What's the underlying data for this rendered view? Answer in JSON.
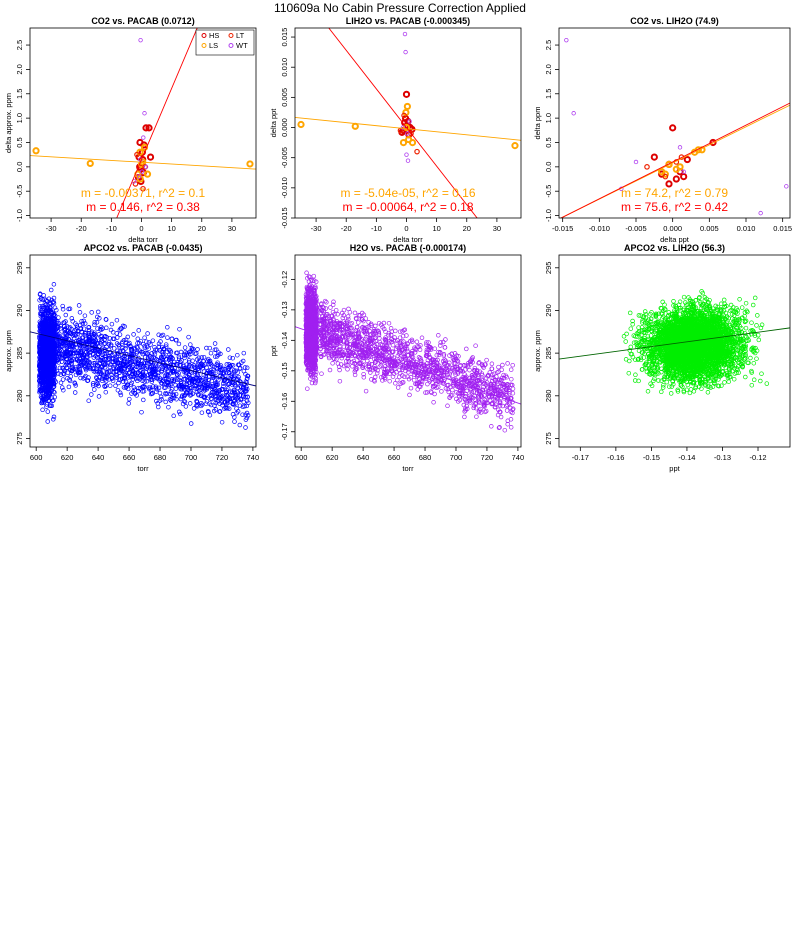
{
  "page": {
    "title": "110609a   No Cabin Pressure Correction Applied"
  },
  "colors": {
    "HS": "#dd0000",
    "LS": "#ffa500",
    "LT": "#ee2200",
    "WT": "#b040f0",
    "apco2_pacab": "#0000ff",
    "h2o_pacab": "#a020f0",
    "apco2_lih2o": "#00ee00",
    "fit_all": "#ff0000",
    "fit_ls": "#ffa500"
  },
  "legend": {
    "entries": [
      "HS",
      "LS",
      "LT",
      "WT"
    ]
  },
  "chart_data": [
    {
      "id": "p1",
      "type": "scatter",
      "title": "CO2 vs. PACAB (0.0712)",
      "xlabel": "delta torr",
      "ylabel": "delta approx. ppm",
      "xlim": [
        -37,
        38
      ],
      "ylim": [
        -1.05,
        2.85
      ],
      "xticks": [
        -30,
        -20,
        -10,
        0,
        10,
        20,
        30
      ],
      "yticks": [
        -1.0,
        -0.5,
        0.0,
        0.5,
        1.0,
        1.5,
        2.0,
        2.5
      ],
      "ytick_labels": [
        "-1.0",
        "-0.5",
        "0.0",
        "0.5",
        "1.0",
        "1.5",
        "2.0",
        "2.5"
      ],
      "legend_entries": [
        "HS",
        "LS",
        "LT",
        "WT"
      ],
      "fits": [
        {
          "name": "LS",
          "slope": -0.00371,
          "intercept": 0.095,
          "label": "m = -0.00371, r^2 = 0.1"
        },
        {
          "name": "all",
          "slope": 0.146,
          "intercept": 0.15,
          "label": "m = 0.146, r^2 = 0.38"
        }
      ],
      "series": [
        {
          "name": "HS",
          "points": [
            [
              1.5,
              0.8
            ],
            [
              2.5,
              0.8
            ],
            [
              0.8,
              0.45
            ],
            [
              -0.5,
              0.5
            ],
            [
              0.3,
              0.3
            ],
            [
              -0.8,
              0.2
            ],
            [
              0.2,
              0.05
            ],
            [
              -0.3,
              -0.05
            ],
            [
              0.6,
              -0.12
            ],
            [
              -1.0,
              -0.22
            ],
            [
              3.0,
              0.2
            ],
            [
              -0.2,
              -0.3
            ],
            [
              0.4,
              0.15
            ],
            [
              -0.6,
              0.0
            ]
          ]
        },
        {
          "name": "LS",
          "points": [
            [
              -35,
              0.33
            ],
            [
              -17,
              0.07
            ],
            [
              36,
              0.06
            ],
            [
              -0.5,
              0.3
            ],
            [
              0.4,
              0.1
            ],
            [
              -1.2,
              -0.15
            ],
            [
              2.0,
              -0.15
            ],
            [
              0.0,
              0.05
            ],
            [
              1.0,
              0.4
            ],
            [
              -0.4,
              -0.25
            ]
          ]
        },
        {
          "name": "LT",
          "points": [
            [
              -2.0,
              -0.35
            ],
            [
              0.5,
              -0.45
            ],
            [
              1.2,
              0.0
            ],
            [
              -1.5,
              0.25
            ]
          ]
        },
        {
          "name": "WT",
          "points": [
            [
              -0.3,
              2.6
            ],
            [
              1.0,
              1.1
            ],
            [
              -0.8,
              -0.2
            ],
            [
              0.2,
              -0.1
            ],
            [
              1.5,
              0.0
            ],
            [
              -2.5,
              -0.3
            ],
            [
              0.6,
              0.6
            ],
            [
              -0.4,
              0.15
            ]
          ]
        }
      ]
    },
    {
      "id": "p2",
      "type": "scatter",
      "title": "LIH2O vs. PACAB (-0.000345)",
      "xlabel": "delta torr",
      "ylabel": "delta ppt",
      "xlim": [
        -37,
        38
      ],
      "ylim": [
        -0.015,
        0.0165
      ],
      "xticks": [
        -30,
        -20,
        -10,
        0,
        10,
        20,
        30
      ],
      "yticks": [
        -0.015,
        -0.01,
        -0.005,
        0.0,
        0.005,
        0.01,
        0.015
      ],
      "ytick_labels": [
        "-0.015",
        "-0.010",
        "-0.005",
        "0.000",
        "0.005",
        "0.010",
        "0.015"
      ],
      "fits": [
        {
          "name": "LS",
          "slope": -5.04e-05,
          "intercept": -0.0002,
          "label": "m = -5.04e-05, r^2 = 0.16"
        },
        {
          "name": "all",
          "slope": -0.00064,
          "intercept": 0.0,
          "label": "m = -0.00064, r^2 = 0.18"
        }
      ],
      "series": [
        {
          "name": "HS",
          "points": [
            [
              0.0,
              0.0055
            ],
            [
              -0.3,
              0.0015
            ],
            [
              0.5,
              0.001
            ],
            [
              -1.0,
              -0.0005
            ],
            [
              1.2,
              0.0
            ],
            [
              -0.6,
              0.0008
            ],
            [
              0.8,
              -0.0012
            ],
            [
              -1.5,
              -0.0008
            ],
            [
              1.8,
              -0.0003
            ],
            [
              0.2,
              0.0003
            ]
          ]
        },
        {
          "name": "LS",
          "points": [
            [
              -35,
              0.0005
            ],
            [
              -17,
              0.0002
            ],
            [
              36,
              -0.003
            ],
            [
              0.3,
              0.0035
            ],
            [
              -0.2,
              0.0025
            ],
            [
              0.7,
              -0.002
            ],
            [
              -1.0,
              -0.0025
            ],
            [
              2.0,
              -0.0025
            ],
            [
              0.0,
              0.0
            ]
          ]
        },
        {
          "name": "LT",
          "points": [
            [
              -0.8,
              0.002
            ],
            [
              1.5,
              -0.001
            ],
            [
              3.5,
              -0.004
            ],
            [
              -2.0,
              -0.0005
            ]
          ]
        },
        {
          "name": "WT",
          "points": [
            [
              -0.5,
              0.0155
            ],
            [
              -0.3,
              0.0125
            ],
            [
              0.5,
              -0.0055
            ],
            [
              0.0,
              -0.0045
            ],
            [
              1.0,
              0.001
            ],
            [
              -1.2,
              0.0
            ],
            [
              0.3,
              -0.001
            ]
          ]
        }
      ]
    },
    {
      "id": "p3",
      "type": "scatter",
      "title": "CO2 vs. LIH2O (74.9)",
      "xlabel": "delta ppt",
      "ylabel": "delta ppm",
      "xlim": [
        -0.0155,
        0.016
      ],
      "ylim": [
        -1.05,
        2.85
      ],
      "xticks": [
        -0.015,
        -0.01,
        -0.005,
        0.0,
        0.005,
        0.01,
        0.015
      ],
      "xtick_labels": [
        "-0.015",
        "-0.010",
        "-0.005",
        "0.000",
        "0.005",
        "0.010",
        "0.015"
      ],
      "yticks": [
        -1.0,
        -0.5,
        0.0,
        0.5,
        1.0,
        1.5,
        2.0,
        2.5
      ],
      "ytick_labels": [
        "-1.0",
        "-0.5",
        "0.0",
        "0.5",
        "1.0",
        "1.5",
        "2.0",
        "2.5"
      ],
      "fits": [
        {
          "name": "LS",
          "slope": 74.2,
          "intercept": 0.08,
          "label": "m = 74.2, r^2 = 0.79"
        },
        {
          "name": "all",
          "slope": 75.6,
          "intercept": 0.1,
          "label": "m = 75.6, r^2 = 0.42"
        }
      ],
      "series": [
        {
          "name": "HS",
          "points": [
            [
              0.0,
              0.8
            ],
            [
              0.0055,
              0.5
            ],
            [
              -0.0025,
              0.2
            ],
            [
              0.002,
              0.15
            ],
            [
              -0.0005,
              0.05
            ],
            [
              0.001,
              -0.1
            ],
            [
              -0.0015,
              -0.15
            ],
            [
              0.0005,
              -0.25
            ],
            [
              -0.0005,
              -0.35
            ],
            [
              0.0015,
              -0.2
            ]
          ]
        },
        {
          "name": "LS",
          "points": [
            [
              0.0035,
              0.35
            ],
            [
              0.003,
              0.3
            ],
            [
              -0.001,
              -0.15
            ],
            [
              0.001,
              0.0
            ],
            [
              -0.0015,
              -0.1
            ],
            [
              0.0005,
              -0.05
            ],
            [
              -0.0005,
              0.05
            ],
            [
              0.004,
              0.35
            ]
          ]
        },
        {
          "name": "LT",
          "points": [
            [
              -0.0035,
              0.0
            ],
            [
              0.0012,
              0.2
            ],
            [
              -0.001,
              -0.2
            ],
            [
              0.0005,
              0.1
            ]
          ]
        },
        {
          "name": "WT",
          "points": [
            [
              -0.0145,
              2.6
            ],
            [
              -0.0135,
              1.1
            ],
            [
              0.012,
              -0.95
            ],
            [
              0.0155,
              -0.4
            ],
            [
              -0.005,
              0.1
            ],
            [
              -0.007,
              -0.45
            ],
            [
              0.001,
              0.4
            ],
            [
              0.0015,
              -0.1
            ]
          ]
        }
      ]
    },
    {
      "id": "p4",
      "type": "scatter",
      "title": "APCO2 vs. PACAB (-0.0435)",
      "xlabel": "torr",
      "ylabel": "approx. ppm",
      "xlim": [
        596,
        742
      ],
      "ylim": [
        274,
        296.5
      ],
      "xticks": [
        600,
        620,
        640,
        660,
        680,
        700,
        720,
        740
      ],
      "yticks": [
        275,
        280,
        285,
        290,
        295
      ],
      "fit": {
        "slope": -0.0435,
        "x0": 596,
        "y0": 287.5,
        "color": "#000080"
      },
      "series": [
        {
          "name": "APCO2",
          "color_key": "apco2_pacab",
          "cluster": {
            "x_lo": 602,
            "x_hi": 612,
            "y_lo": 276,
            "y_hi": 294
          },
          "n_points": 2800,
          "y_at_600": 286.5,
          "slope": -0.0435,
          "spread": 3.2
        }
      ]
    },
    {
      "id": "p5",
      "type": "scatter",
      "title": "H2O vs. PACAB (-0.000174)",
      "xlabel": "torr",
      "ylabel": "ppt",
      "xlim": [
        596,
        742
      ],
      "ylim": [
        -0.175,
        -0.112
      ],
      "xticks": [
        600,
        620,
        640,
        660,
        680,
        700,
        720,
        740
      ],
      "yticks": [
        -0.17,
        -0.16,
        -0.15,
        -0.14,
        -0.13,
        -0.12
      ],
      "ytick_labels": [
        "-0.17",
        "-0.16",
        "-0.15",
        "-0.14",
        "-0.13",
        "-0.12"
      ],
      "fit": {
        "slope": -0.000174,
        "x0": 596,
        "y0": -0.1355,
        "color": "#a020f0"
      },
      "series": [
        {
          "name": "H2O",
          "color_key": "h2o_pacab",
          "cluster": {
            "x_lo": 603,
            "x_hi": 610,
            "y_lo": -0.158,
            "y_hi": -0.115
          },
          "n_points": 2600,
          "y_at_600": -0.135,
          "slope": -0.000174,
          "spread": 0.008
        }
      ]
    },
    {
      "id": "p6",
      "type": "scatter",
      "title": "APCO2 vs. LIH2O (56.3)",
      "xlabel": "ppt",
      "ylabel": "approx. ppm",
      "xlim": [
        -0.176,
        -0.111
      ],
      "ylim": [
        274,
        296.5
      ],
      "xticks": [
        -0.17,
        -0.16,
        -0.15,
        -0.14,
        -0.13,
        -0.12
      ],
      "xtick_labels": [
        "-0.17",
        "-0.16",
        "-0.15",
        "-0.14",
        "-0.13",
        "-0.12"
      ],
      "yticks": [
        275,
        280,
        285,
        290,
        295
      ],
      "fit": {
        "slope": 56.3,
        "x0": -0.176,
        "y0": 284.3,
        "color": "#006400"
      },
      "series": [
        {
          "name": "APCO2 vs LIH2O",
          "color_key": "apco2_lih2o",
          "x_center": -0.138,
          "x_spread": 0.012,
          "y_center": 286,
          "y_spread": 3.3,
          "n_points": 3800
        }
      ]
    }
  ]
}
